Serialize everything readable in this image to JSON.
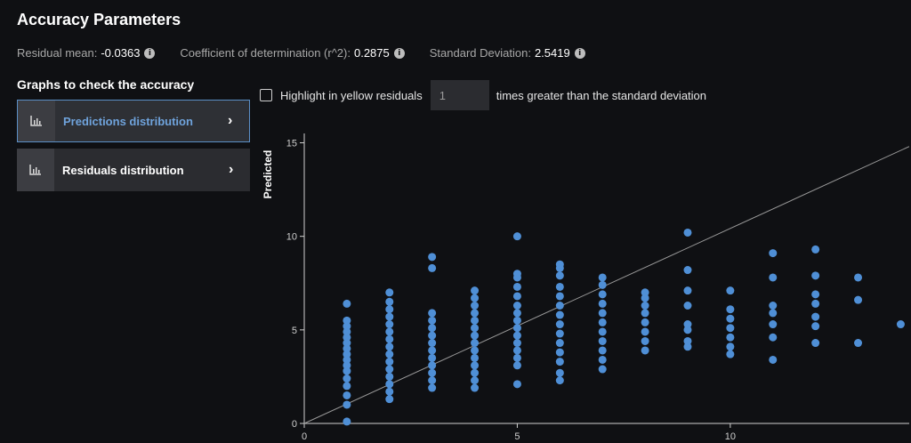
{
  "header": {
    "title": "Accuracy Parameters"
  },
  "stats": [
    {
      "label": "Residual mean:",
      "value": "-0.0363",
      "icon": "info-icon"
    },
    {
      "label": "Coefficient of determination (r^2):",
      "value": "0.2875",
      "icon": "info-icon"
    },
    {
      "label": "Standard Deviation:",
      "value": "2.5419",
      "icon": "info-icon"
    }
  ],
  "graphs": {
    "title": "Graphs to check the accuracy",
    "items": [
      {
        "label": "Predictions distribution",
        "icon": "bar-chart-icon",
        "active": true
      },
      {
        "label": "Residuals distribution",
        "icon": "bar-chart-icon",
        "active": false
      }
    ]
  },
  "highlight": {
    "label": "Highlight in yellow residuals",
    "value": "1",
    "suffix": "times greater than the standard deviation",
    "checked": false
  },
  "colors": {
    "accent": "#6fa3dc",
    "point": "#4f8fd6",
    "background": "#0f1013"
  },
  "chart_data": {
    "type": "scatter",
    "ylabel": "Predicted",
    "xlabel": "",
    "xlim": [
      0,
      14.2
    ],
    "ylim": [
      0,
      15.5
    ],
    "xticks": [
      "0",
      "5",
      "10"
    ],
    "yticks": [
      "0",
      "5",
      "10",
      "15"
    ],
    "reference_line": {
      "from": [
        0,
        0
      ],
      "to": [
        14.2,
        14.8
      ]
    },
    "points": [
      [
        1,
        0.1
      ],
      [
        1,
        1.0
      ],
      [
        1,
        1.5
      ],
      [
        1,
        2.0
      ],
      [
        1,
        2.4
      ],
      [
        1,
        2.8
      ],
      [
        1,
        3.1
      ],
      [
        1,
        3.4
      ],
      [
        1,
        3.7
      ],
      [
        1,
        4.0
      ],
      [
        1,
        4.3
      ],
      [
        1,
        4.6
      ],
      [
        1,
        4.9
      ],
      [
        1,
        5.2
      ],
      [
        1,
        5.5
      ],
      [
        1,
        6.4
      ],
      [
        2,
        1.3
      ],
      [
        2,
        1.7
      ],
      [
        2,
        2.1
      ],
      [
        2,
        2.5
      ],
      [
        2,
        2.9
      ],
      [
        2,
        3.3
      ],
      [
        2,
        3.7
      ],
      [
        2,
        4.1
      ],
      [
        2,
        4.5
      ],
      [
        2,
        4.9
      ],
      [
        2,
        5.3
      ],
      [
        2,
        5.7
      ],
      [
        2,
        6.1
      ],
      [
        2,
        6.5
      ],
      [
        2,
        7.0
      ],
      [
        3,
        1.9
      ],
      [
        3,
        2.3
      ],
      [
        3,
        2.7
      ],
      [
        3,
        3.1
      ],
      [
        3,
        3.5
      ],
      [
        3,
        3.9
      ],
      [
        3,
        4.3
      ],
      [
        3,
        4.7
      ],
      [
        3,
        5.1
      ],
      [
        3,
        5.5
      ],
      [
        3,
        5.9
      ],
      [
        3,
        8.3
      ],
      [
        3,
        8.9
      ],
      [
        4,
        1.9
      ],
      [
        4,
        2.3
      ],
      [
        4,
        2.7
      ],
      [
        4,
        3.1
      ],
      [
        4,
        3.5
      ],
      [
        4,
        3.9
      ],
      [
        4,
        4.3
      ],
      [
        4,
        4.7
      ],
      [
        4,
        5.1
      ],
      [
        4,
        5.5
      ],
      [
        4,
        5.9
      ],
      [
        4,
        6.3
      ],
      [
        4,
        6.7
      ],
      [
        4,
        7.1
      ],
      [
        5,
        2.1
      ],
      [
        5,
        3.1
      ],
      [
        5,
        3.5
      ],
      [
        5,
        3.9
      ],
      [
        5,
        4.3
      ],
      [
        5,
        4.7
      ],
      [
        5,
        5.1
      ],
      [
        5,
        5.5
      ],
      [
        5,
        5.9
      ],
      [
        5,
        6.3
      ],
      [
        5,
        6.8
      ],
      [
        5,
        7.3
      ],
      [
        5,
        7.8
      ],
      [
        5,
        8.0
      ],
      [
        5,
        10.0
      ],
      [
        6,
        2.3
      ],
      [
        6,
        2.7
      ],
      [
        6,
        3.3
      ],
      [
        6,
        3.8
      ],
      [
        6,
        4.3
      ],
      [
        6,
        4.8
      ],
      [
        6,
        5.3
      ],
      [
        6,
        5.8
      ],
      [
        6,
        6.3
      ],
      [
        6,
        6.8
      ],
      [
        6,
        7.3
      ],
      [
        6,
        7.9
      ],
      [
        6,
        8.3
      ],
      [
        6,
        8.5
      ],
      [
        7,
        2.9
      ],
      [
        7,
        3.4
      ],
      [
        7,
        3.9
      ],
      [
        7,
        4.4
      ],
      [
        7,
        4.9
      ],
      [
        7,
        5.4
      ],
      [
        7,
        5.9
      ],
      [
        7,
        6.4
      ],
      [
        7,
        6.9
      ],
      [
        7,
        7.4
      ],
      [
        7,
        7.8
      ],
      [
        8,
        3.9
      ],
      [
        8,
        4.4
      ],
      [
        8,
        4.9
      ],
      [
        8,
        5.4
      ],
      [
        8,
        5.9
      ],
      [
        8,
        6.3
      ],
      [
        8,
        6.7
      ],
      [
        8,
        7.0
      ],
      [
        9,
        4.1
      ],
      [
        9,
        4.4
      ],
      [
        9,
        5.0
      ],
      [
        9,
        5.3
      ],
      [
        9,
        6.3
      ],
      [
        9,
        7.1
      ],
      [
        9,
        8.2
      ],
      [
        9,
        10.2
      ],
      [
        10,
        3.7
      ],
      [
        10,
        4.1
      ],
      [
        10,
        4.6
      ],
      [
        10,
        5.1
      ],
      [
        10,
        5.6
      ],
      [
        10,
        6.1
      ],
      [
        10,
        7.1
      ],
      [
        11,
        3.4
      ],
      [
        11,
        4.6
      ],
      [
        11,
        5.3
      ],
      [
        11,
        5.9
      ],
      [
        11,
        6.3
      ],
      [
        11,
        7.8
      ],
      [
        11,
        9.1
      ],
      [
        12,
        4.3
      ],
      [
        12,
        5.2
      ],
      [
        12,
        5.7
      ],
      [
        12,
        6.4
      ],
      [
        12,
        6.9
      ],
      [
        12,
        7.9
      ],
      [
        12,
        9.3
      ],
      [
        13,
        4.3
      ],
      [
        13,
        6.6
      ],
      [
        13,
        7.8
      ],
      [
        14,
        5.3
      ]
    ]
  }
}
